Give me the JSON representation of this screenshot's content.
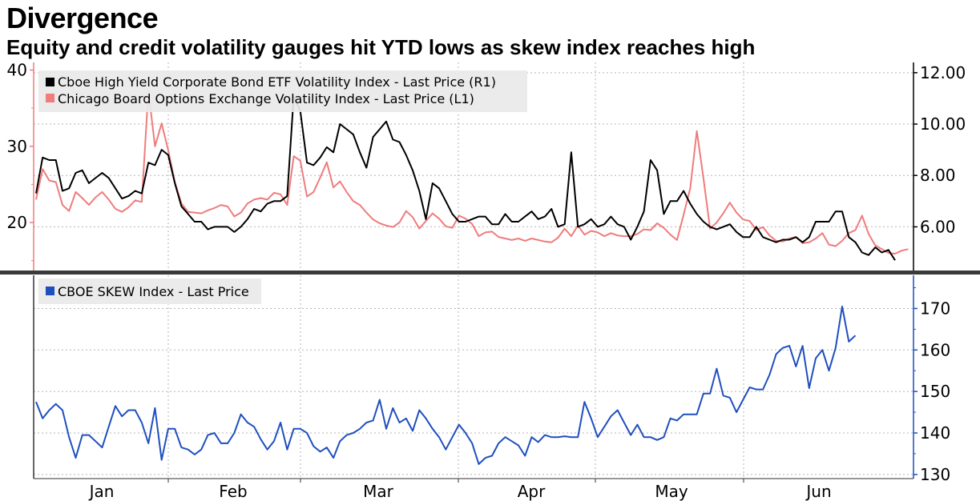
{
  "title": "Divergence",
  "subtitle": "Equity and credit volatility gauges hit YTD lows as skew index reaches  high",
  "colors": {
    "hy_vol": "#000000",
    "vix": "#f07c7c",
    "skew": "#1f4fbf",
    "grid": "#b5b5b5",
    "divider": "#3a3a3a"
  },
  "chart_data": [
    {
      "type": "line",
      "panel": "top",
      "x_labels": [
        "Jan",
        "Feb",
        "Mar",
        "Apr",
        "May",
        "Jun"
      ],
      "left_axis": {
        "ticks": [
          20,
          30,
          40
        ],
        "ylim": [
          13.7,
          41.0
        ]
      },
      "right_axis": {
        "ticks": [
          "6.00",
          "8.00",
          "10.00",
          "12.00"
        ],
        "ylim": [
          4.3,
          12.4
        ]
      },
      "legend_position": "top-left",
      "grid": true,
      "series": [
        {
          "name": "Cboe High Yield Corporate Bond ETF Volatility Index - Last Price (R1)",
          "axis": "right",
          "values": [
            7.3,
            8.7,
            8.6,
            8.6,
            7.4,
            7.5,
            8.1,
            8.2,
            7.7,
            7.9,
            8.1,
            7.9,
            7.5,
            7.1,
            7.2,
            7.4,
            7.3,
            8.5,
            8.4,
            9.0,
            8.8,
            7.7,
            6.8,
            6.5,
            6.2,
            6.2,
            5.9,
            6.0,
            6.0,
            6.0,
            5.8,
            6.0,
            6.3,
            6.7,
            6.6,
            6.9,
            7.0,
            7.0,
            7.2,
            11.1,
            10.5,
            8.5,
            8.4,
            8.7,
            9.1,
            8.9,
            10.0,
            9.8,
            9.6,
            8.9,
            8.3,
            9.5,
            9.8,
            10.1,
            9.4,
            9.3,
            8.8,
            8.2,
            7.4,
            6.3,
            7.7,
            7.5,
            7.0,
            6.5,
            6.2,
            6.2,
            6.3,
            6.4,
            6.4,
            6.1,
            6.1,
            6.5,
            6.2,
            6.2,
            6.4,
            6.6,
            6.3,
            6.4,
            6.7,
            6.0,
            6.1,
            8.9,
            6.0,
            6.1,
            6.3,
            6.0,
            6.1,
            6.4,
            6.1,
            6.0,
            5.5,
            6.0,
            6.6,
            8.6,
            8.2,
            6.5,
            7.0,
            7.0,
            7.4,
            6.9,
            6.5,
            6.2,
            6.0,
            5.9,
            6.0,
            6.1,
            5.8,
            5.6,
            5.6,
            6.0,
            5.6,
            5.5,
            5.4,
            5.5,
            5.5,
            5.6,
            5.4,
            5.6,
            6.2,
            6.2,
            6.2,
            6.6,
            6.6,
            5.6,
            5.4,
            5.0,
            4.9,
            5.2,
            5.0,
            5.1,
            4.7
          ]
        },
        {
          "name": "Chicago Board Options Exchange Volatility Index - Last Price (L1)",
          "axis": "left",
          "values": [
            23.0,
            27.0,
            25.5,
            25.3,
            22.3,
            21.5,
            24.0,
            23.2,
            22.3,
            23.3,
            24.0,
            23.0,
            21.8,
            21.4,
            22.0,
            22.9,
            22.7,
            37.3,
            30.0,
            33.0,
            29.5,
            25.3,
            22.5,
            21.4,
            21.3,
            21.2,
            21.6,
            21.9,
            22.3,
            22.1,
            20.8,
            21.3,
            22.5,
            23.0,
            23.2,
            23.0,
            23.9,
            23.7,
            22.3,
            28.7,
            28.1,
            23.4,
            24.0,
            25.9,
            27.9,
            24.6,
            25.4,
            24.0,
            22.8,
            22.3,
            21.3,
            20.4,
            19.9,
            19.6,
            19.4,
            20.0,
            21.5,
            20.7,
            19.2,
            20.2,
            21.2,
            20.5,
            19.5,
            19.3,
            20.9,
            20.5,
            19.8,
            18.2,
            18.7,
            18.8,
            18.1,
            17.9,
            17.7,
            17.9,
            17.6,
            17.9,
            17.7,
            17.5,
            17.4,
            18.0,
            19.2,
            18.2,
            19.6,
            18.4,
            18.9,
            18.7,
            18.2,
            18.6,
            18.3,
            18.2,
            18.2,
            18.5,
            19.1,
            19.0,
            19.9,
            19.3,
            18.4,
            17.7,
            21.0,
            24.5,
            32.0,
            25.8,
            19.2,
            20.0,
            21.2,
            22.6,
            21.3,
            20.4,
            20.2,
            19.0,
            19.4,
            18.3,
            17.6,
            17.5,
            17.9,
            18.1,
            17.3,
            17.4,
            17.9,
            18.6,
            17.1,
            16.9,
            17.6,
            18.6,
            19.0,
            20.9,
            18.5,
            17.0,
            16.5,
            16.0,
            15.9,
            16.3,
            16.5
          ]
        }
      ]
    },
    {
      "type": "line",
      "panel": "bottom",
      "x_labels": [
        "Jan",
        "Feb",
        "Mar",
        "Apr",
        "May",
        "Jun"
      ],
      "right_axis": {
        "ticks": [
          130,
          140,
          150,
          160,
          170
        ],
        "ylim": [
          129.0,
          178.0
        ]
      },
      "legend_position": "top-left",
      "grid": true,
      "series": [
        {
          "name": "CBOE SKEW Index - Last Price",
          "axis": "right",
          "values": [
            147.5,
            143.5,
            145.5,
            147.0,
            145.5,
            139.0,
            134.0,
            139.5,
            139.5,
            138.0,
            136.5,
            141.5,
            146.5,
            144.0,
            145.5,
            145.5,
            142.5,
            137.5,
            146.0,
            133.5,
            141.0,
            141.0,
            136.5,
            136.0,
            134.8,
            136.0,
            139.5,
            140.0,
            137.5,
            137.5,
            140.0,
            144.5,
            142.5,
            141.5,
            138.5,
            136.0,
            138.0,
            142.5,
            136.0,
            141.0,
            141.0,
            140.0,
            136.8,
            135.5,
            136.5,
            134.0,
            138.0,
            139.5,
            140.0,
            141.0,
            142.5,
            143.0,
            148.0,
            141.0,
            146.0,
            142.5,
            143.5,
            140.5,
            145.5,
            143.5,
            141.0,
            139.0,
            136.0,
            139.0,
            142.0,
            140.0,
            137.5,
            132.5,
            134.0,
            134.5,
            137.5,
            139.0,
            138.0,
            137.0,
            134.5,
            139.0,
            137.8,
            139.5,
            139.0,
            139.0,
            139.2,
            139.0,
            139.0,
            147.5,
            143.5,
            139.0,
            141.5,
            144.0,
            145.5,
            142.5,
            139.5,
            142.0,
            139.0,
            139.0,
            138.3,
            139.0,
            143.5,
            143.0,
            144.5,
            144.5,
            144.5,
            149.5,
            149.5,
            155.5,
            149.0,
            148.5,
            145.0,
            148.0,
            151.0,
            150.5,
            150.5,
            154.0,
            159.0,
            160.5,
            161.0,
            156.0,
            161.0,
            150.8,
            158.0,
            160.0,
            155.0,
            160.5,
            170.5,
            162.0,
            163.5
          ]
        }
      ]
    }
  ]
}
